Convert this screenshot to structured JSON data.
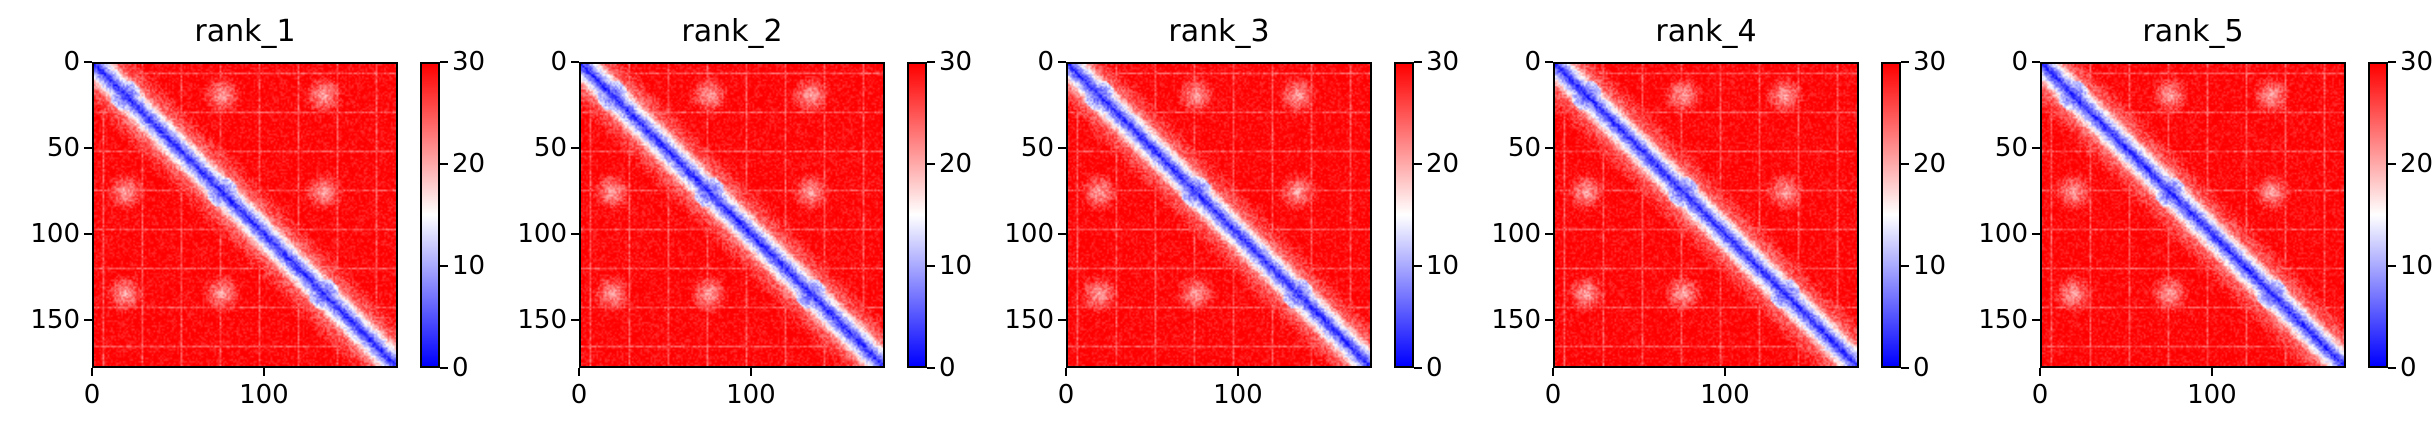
{
  "chart_data": [
    {
      "type": "heatmap",
      "title": "rank_1",
      "size": 178,
      "x_ticks": [
        0,
        100
      ],
      "y_ticks": [
        0,
        50,
        100,
        150
      ],
      "colorbar": {
        "min": 0,
        "max": 30,
        "ticks": [
          0,
          10,
          20,
          30
        ],
        "colors": [
          "#0000ff",
          "#ffffff",
          "#ff0000"
        ]
      },
      "domains": [
        0,
        18,
        75,
        135,
        178
      ]
    },
    {
      "type": "heatmap",
      "title": "rank_2",
      "size": 178,
      "x_ticks": [
        0,
        100
      ],
      "y_ticks": [
        0,
        50,
        100,
        150
      ],
      "colorbar": {
        "min": 0,
        "max": 30,
        "ticks": [
          0,
          10,
          20,
          30
        ],
        "colors": [
          "#0000ff",
          "#ffffff",
          "#ff0000"
        ]
      },
      "domains": [
        0,
        18,
        75,
        135,
        178
      ]
    },
    {
      "type": "heatmap",
      "title": "rank_3",
      "size": 178,
      "x_ticks": [
        0,
        100
      ],
      "y_ticks": [
        0,
        50,
        100,
        150
      ],
      "colorbar": {
        "min": 0,
        "max": 30,
        "ticks": [
          0,
          10,
          20,
          30
        ],
        "colors": [
          "#0000ff",
          "#ffffff",
          "#ff0000"
        ]
      },
      "domains": [
        0,
        18,
        75,
        135,
        178
      ]
    },
    {
      "type": "heatmap",
      "title": "rank_4",
      "size": 178,
      "x_ticks": [
        0,
        100
      ],
      "y_ticks": [
        0,
        50,
        100,
        150
      ],
      "colorbar": {
        "min": 0,
        "max": 30,
        "ticks": [
          0,
          10,
          20,
          30
        ],
        "colors": [
          "#0000ff",
          "#ffffff",
          "#ff0000"
        ]
      },
      "domains": [
        0,
        18,
        75,
        135,
        178
      ]
    },
    {
      "type": "heatmap",
      "title": "rank_5",
      "size": 178,
      "x_ticks": [
        0,
        100
      ],
      "y_ticks": [
        0,
        50,
        100,
        150
      ],
      "colorbar": {
        "min": 0,
        "max": 30,
        "ticks": [
          0,
          10,
          20,
          30
        ],
        "colors": [
          "#0000ff",
          "#ffffff",
          "#ff0000"
        ]
      },
      "domains": [
        0,
        18,
        75,
        135,
        178
      ]
    }
  ]
}
